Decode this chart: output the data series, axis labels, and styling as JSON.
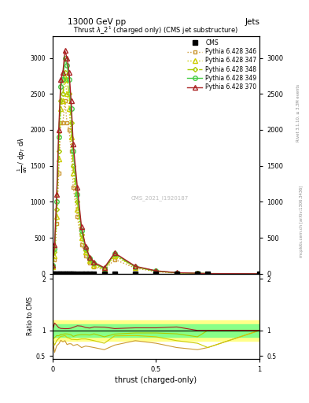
{
  "title_top": "13000 GeV pp",
  "title_right": "Jets",
  "plot_title": "Thrust $\\lambda\\_2^1$ (charged only) (CMS jet substructure)",
  "xlabel": "thrust (charged-only)",
  "ylabel_ratio": "Ratio to CMS",
  "rivet_label": "Rivet 3.1.10, ≥ 3.3M events",
  "mcplots_label": "mcplots.cern.ch [arXiv:1306.3436]",
  "cms_watermark": "CMS_2021_I1920187",
  "x_data": [
    0.0,
    0.01,
    0.02,
    0.03,
    0.04,
    0.05,
    0.06,
    0.07,
    0.08,
    0.09,
    0.1,
    0.12,
    0.14,
    0.16,
    0.18,
    0.2,
    0.25,
    0.3,
    0.4,
    0.5,
    0.6,
    0.7,
    0.75,
    1.0
  ],
  "cms_y": [
    0.0,
    0.0,
    0.0,
    0.0,
    0.0,
    0.0,
    0.0,
    0.0,
    0.0,
    0.0,
    0.0,
    0.0,
    0.0,
    0.0,
    0.0,
    0.0,
    0.0,
    0.0,
    0.0,
    0.0,
    0.0,
    0.0,
    0.05,
    0.0
  ],
  "p346_y": [
    100,
    200,
    700,
    1400,
    2100,
    2100,
    2400,
    2100,
    2000,
    1700,
    1200,
    800,
    400,
    250,
    150,
    100,
    50,
    200,
    80,
    30,
    10,
    5,
    2,
    1
  ],
  "p347_y": [
    100,
    250,
    800,
    1600,
    2300,
    2400,
    2700,
    2500,
    2300,
    1900,
    1400,
    900,
    500,
    300,
    180,
    120,
    60,
    250,
    90,
    35,
    12,
    6,
    2,
    1
  ],
  "p348_y": [
    100,
    300,
    900,
    1700,
    2400,
    2500,
    2800,
    2700,
    2500,
    2100,
    1500,
    1000,
    550,
    330,
    200,
    140,
    70,
    260,
    95,
    38,
    14,
    7,
    3,
    1
  ],
  "p349_y": [
    120,
    350,
    1000,
    1900,
    2600,
    2700,
    3000,
    2900,
    2700,
    2300,
    1700,
    1100,
    600,
    360,
    220,
    150,
    80,
    280,
    100,
    40,
    15,
    8,
    3,
    1
  ],
  "p370_y": [
    120,
    400,
    1100,
    2000,
    2700,
    2800,
    3100,
    3000,
    2800,
    2400,
    1800,
    1200,
    650,
    380,
    230,
    160,
    85,
    290,
    105,
    42,
    16,
    8,
    3,
    1
  ],
  "cms_color": "#000000",
  "p346_color": "#cc9933",
  "p347_color": "#cccc00",
  "p348_color": "#aacc00",
  "p349_color": "#44cc44",
  "p370_color": "#aa2222",
  "ylim_main": [
    0,
    3300
  ],
  "ylim_ratio": [
    0.45,
    2.1
  ],
  "xlim": [
    0.0,
    1.0
  ],
  "yticks_main": [
    0,
    500,
    1000,
    1500,
    2000,
    2500,
    3000
  ],
  "ytick_labels_main": [
    "0",
    "500",
    "1000",
    "1500",
    "2000",
    "2500",
    "3000"
  ]
}
